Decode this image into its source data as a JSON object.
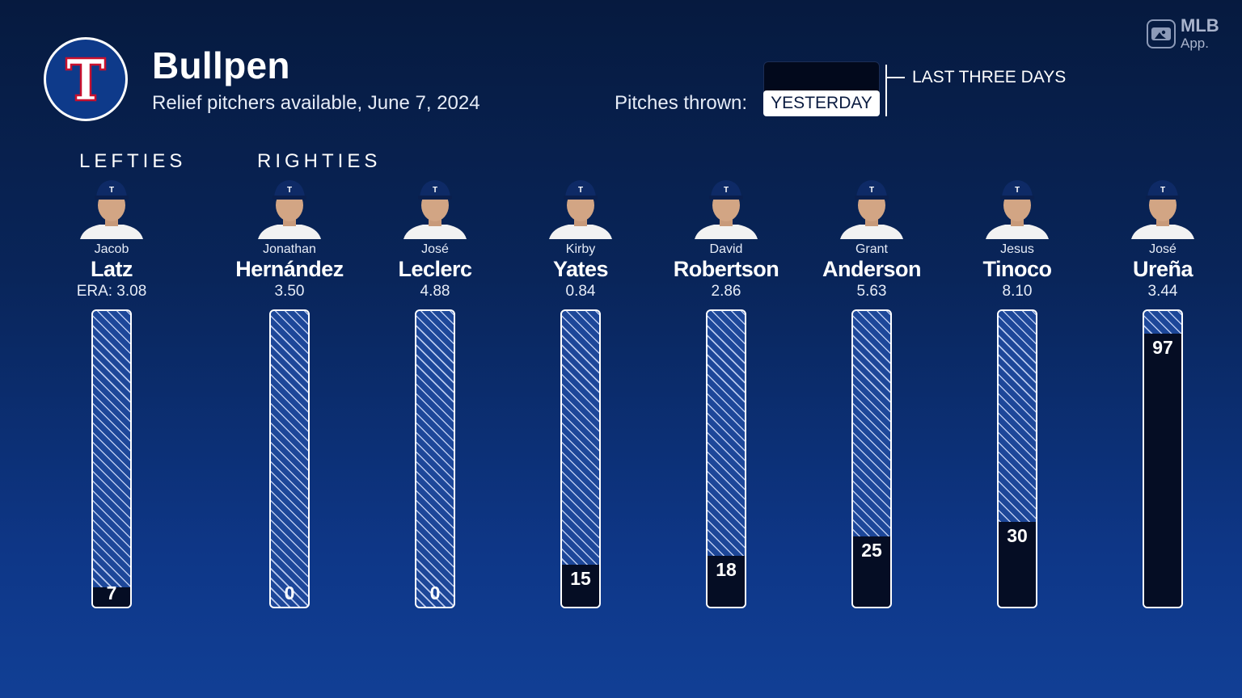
{
  "header": {
    "title": "Bullpen",
    "subtitle": "Relief pitchers available, June 7, 2024",
    "pitches_label": "Pitches thrown:",
    "toggle_selected": "YESTERDAY",
    "toggle_other": "LAST THREE DAYS"
  },
  "team_logo": {
    "letter": "T",
    "icon": "rangers-logo-icon"
  },
  "brand": {
    "name": "MLB",
    "sub": "App."
  },
  "sections": {
    "lefties": "LEFTIES",
    "righties": "RIGHTIES"
  },
  "colors": {
    "fill": "#050d24",
    "hatch": "#b9c9ee",
    "background": "#0a2558"
  },
  "scale_max_pitches": 105,
  "pitchers": [
    {
      "first": "Jacob",
      "last": "Latz",
      "era": "ERA: 3.08",
      "pitches": 7,
      "hand": "L"
    },
    {
      "first": "Jonathan",
      "last": "Hernández",
      "era": "3.50",
      "pitches": 0,
      "hand": "R"
    },
    {
      "first": "José",
      "last": "Leclerc",
      "era": "4.88",
      "pitches": 0,
      "hand": "R"
    },
    {
      "first": "Kirby",
      "last": "Yates",
      "era": "0.84",
      "pitches": 15,
      "hand": "R"
    },
    {
      "first": "David",
      "last": "Robertson",
      "era": "2.86",
      "pitches": 18,
      "hand": "R"
    },
    {
      "first": "Grant",
      "last": "Anderson",
      "era": "5.63",
      "pitches": 25,
      "hand": "R"
    },
    {
      "first": "Jesus",
      "last": "Tinoco",
      "era": "8.10",
      "pitches": 30,
      "hand": "R"
    },
    {
      "first": "José",
      "last": "Ureña",
      "era": "3.44",
      "pitches": 97,
      "hand": "R"
    }
  ]
}
